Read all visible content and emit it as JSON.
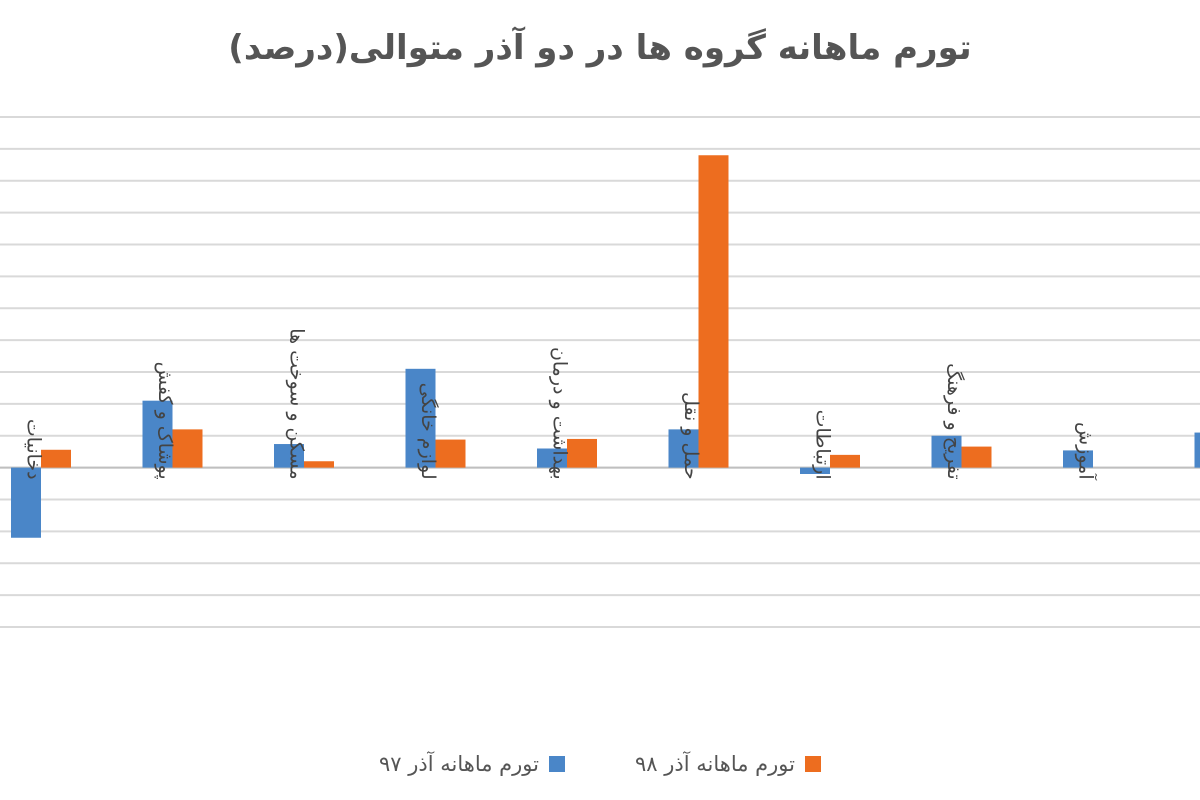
{
  "chart_data": {
    "type": "bar",
    "title": "تورم ماهانه گروه ها در دو آذر متوالی(درصد)",
    "xlabel": "",
    "ylabel": "",
    "ylim": [
      -2.5,
      5.5
    ],
    "grid": true,
    "legend_position": "bottom",
    "categories": [
      "دخانیات",
      "پوشاک و کفش",
      "مسکن و سوخت ها",
      "لوازم خانگی",
      "بهداشت و درمان",
      "حمل و نقل",
      "ارتباطات",
      "تفریح و فرهنگ",
      "آموزش",
      ""
    ],
    "series": [
      {
        "name": "تورم ماهانه آذر ۹۷",
        "color": "#4a86c8",
        "values": [
          -1.1,
          1.05,
          0.37,
          1.55,
          0.3,
          0.6,
          -0.1,
          0.5,
          0.27,
          0.55
        ]
      },
      {
        "name": "تورم ماهانه آذر ۹۸",
        "color": "#ed6d1f",
        "values": [
          0.28,
          0.6,
          0.1,
          0.44,
          0.45,
          4.9,
          0.2,
          0.33,
          null,
          null
        ]
      }
    ]
  }
}
